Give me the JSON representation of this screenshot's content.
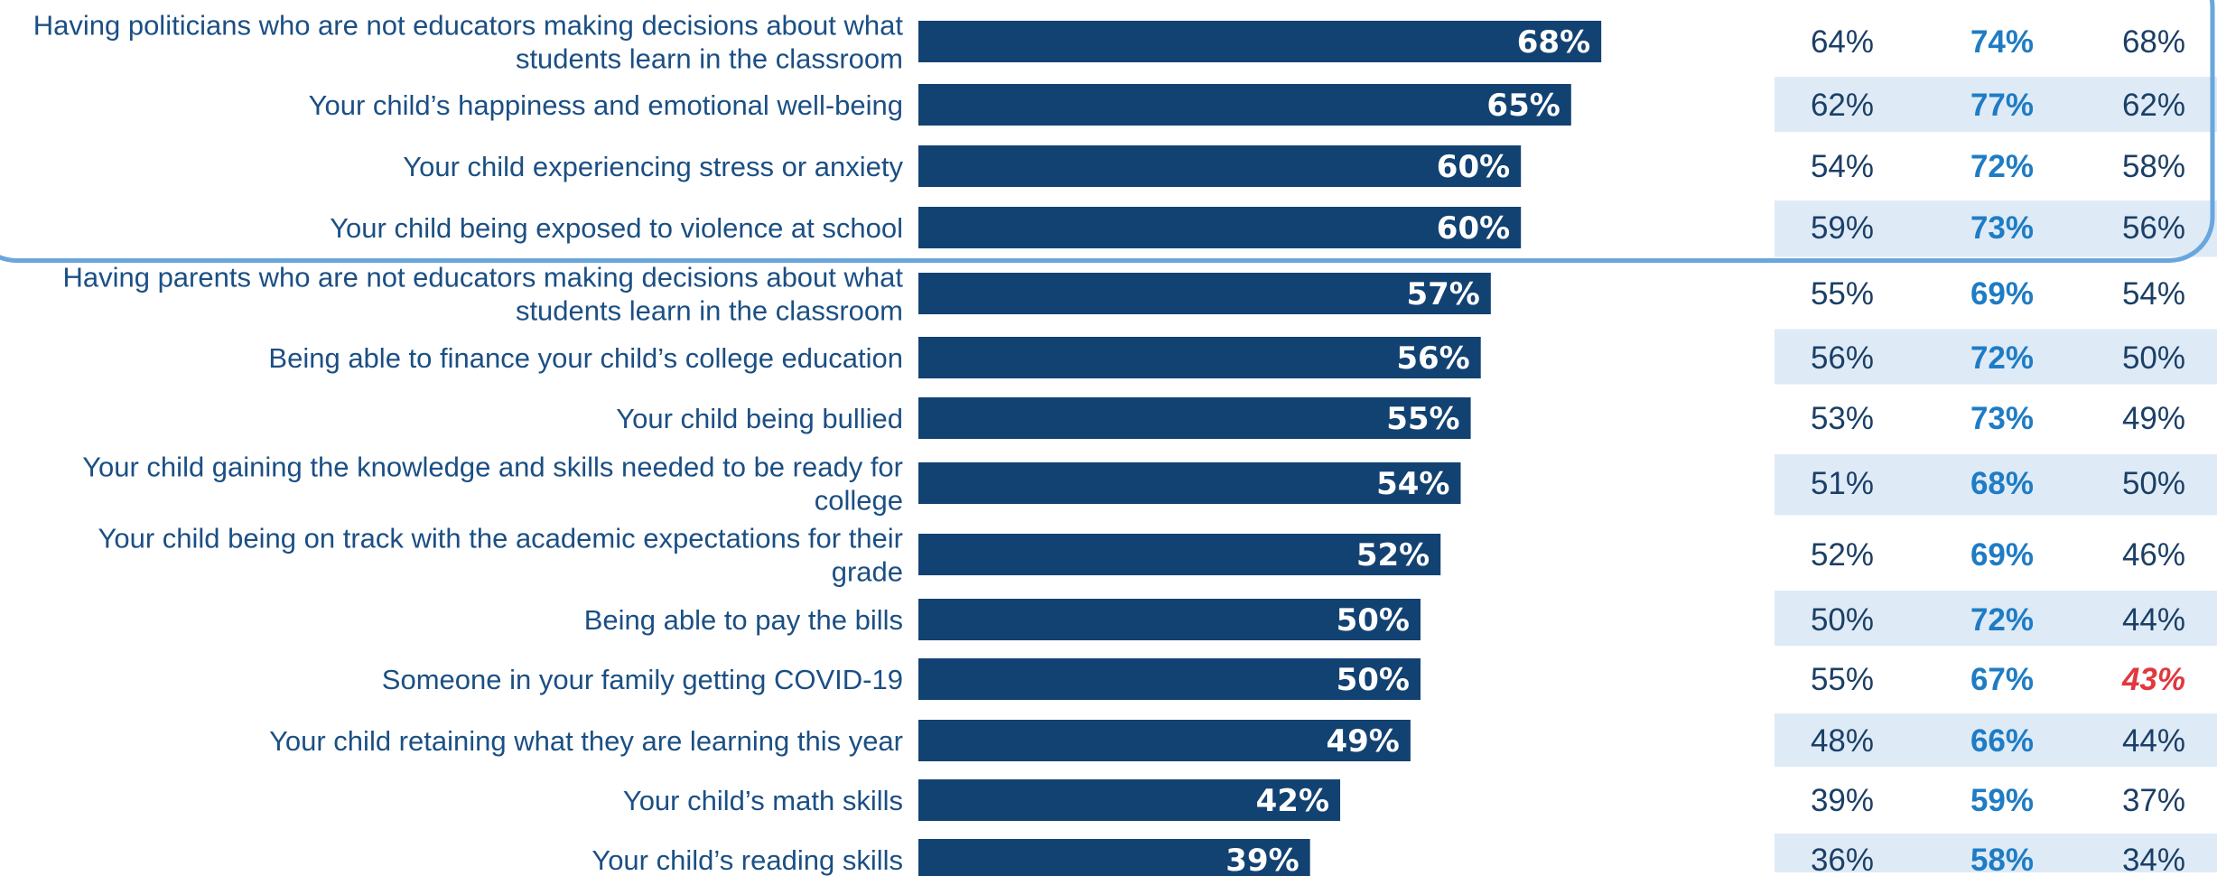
{
  "chart_data": {
    "type": "bar",
    "orientation": "horizontal",
    "categories": [
      "Having politicians who are not educators making decisions about what students learn in the classroom",
      "Your child’s happiness and emotional well-being",
      "Your child experiencing stress or anxiety",
      "Your child being exposed to violence at school",
      "Having parents who are not educators making decisions about what students learn in the classroom",
      "Being able to finance your child’s college education",
      "Your child being bullied",
      "Your child gaining the knowledge and skills needed to be ready for college",
      "Your child being on track with the academic expectations for their grade",
      "Being able to pay the bills",
      "Someone in your family getting COVID-19",
      "Your child retaining what they are learning this year",
      "Your child’s math skills",
      "Your child’s reading skills"
    ],
    "category_lines": [
      [
        "Having politicians who are not educators making decisions about what",
        "students learn in the classroom"
      ],
      [
        "Your child’s happiness and emotional well-being"
      ],
      [
        "Your child experiencing stress or anxiety"
      ],
      [
        "Your child being exposed to violence at school"
      ],
      [
        "Having parents who are not educators making decisions about what",
        "students learn in the classroom"
      ],
      [
        "Being able to finance your child’s college education"
      ],
      [
        "Your child being bullied"
      ],
      [
        "Your child gaining the knowledge and skills needed to be ready for",
        "college"
      ],
      [
        "Your child being on track with the academic expectations for their",
        "grade"
      ],
      [
        "Being able to pay the bills"
      ],
      [
        "Someone in your family getting COVID-19"
      ],
      [
        "Your child retaining what they are learning this year"
      ],
      [
        "Your child’s math skills"
      ],
      [
        "Your child’s reading skills"
      ]
    ],
    "values": [
      68,
      65,
      60,
      60,
      57,
      56,
      55,
      54,
      52,
      50,
      50,
      49,
      42,
      39
    ],
    "value_labels": [
      "68%",
      "65%",
      "60%",
      "60%",
      "57%",
      "56%",
      "55%",
      "54%",
      "52%",
      "50%",
      "50%",
      "49%",
      "42%",
      "39%"
    ],
    "xlim": [
      0,
      100
    ],
    "columns": [
      {
        "values": [
          "64%",
          "62%",
          "54%",
          "59%",
          "55%",
          "56%",
          "53%",
          "51%",
          "52%",
          "50%",
          "55%",
          "48%",
          "39%",
          "36%"
        ]
      },
      {
        "values": [
          "74%",
          "77%",
          "72%",
          "73%",
          "69%",
          "72%",
          "73%",
          "68%",
          "69%",
          "72%",
          "67%",
          "66%",
          "59%",
          "58%"
        ]
      },
      {
        "values": [
          "68%",
          "62%",
          "58%",
          "56%",
          "54%",
          "50%",
          "49%",
          "50%",
          "46%",
          "44%",
          "43%",
          "44%",
          "37%",
          "34%"
        ],
        "highlighted_index": 10
      }
    ],
    "highlighted_rows": [
      0,
      1,
      2,
      3
    ],
    "grid": false,
    "legend": "none",
    "colors": {
      "bar": "#124272",
      "label_text": "#1b4f84",
      "column_text": "#1b3f66",
      "column_accent": "#1f7cc4",
      "flag": "#e0383e",
      "stripe": "#deebf7",
      "highlight_outline": "#6aa6dc"
    }
  }
}
